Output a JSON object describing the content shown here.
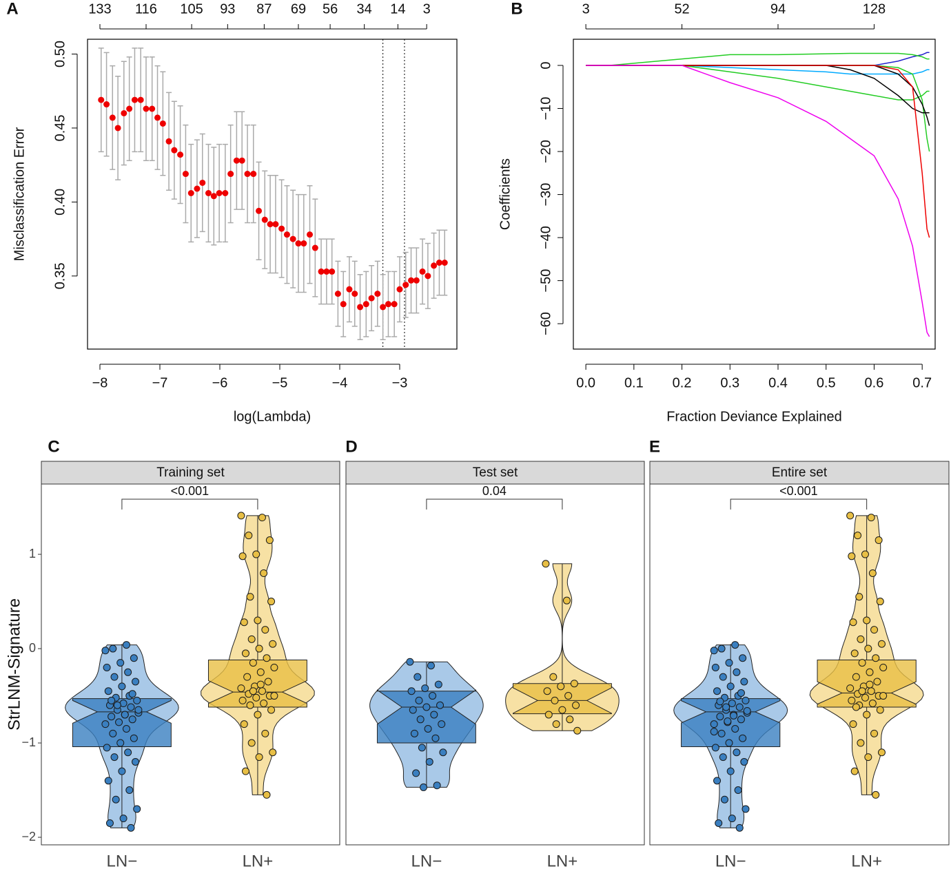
{
  "chart_data": [
    {
      "type": "scatter",
      "panel": "A",
      "xlabel": "log(Lambda)",
      "ylabel": "Misclassification Error",
      "x": [
        -7.98,
        -7.89,
        -7.79,
        -7.7,
        -7.6,
        -7.51,
        -7.42,
        -7.32,
        -7.23,
        -7.13,
        -7.04,
        -6.95,
        -6.85,
        -6.76,
        -6.66,
        -6.57,
        -6.48,
        -6.38,
        -6.29,
        -6.19,
        -6.1,
        -6.01,
        -5.91,
        -5.82,
        -5.72,
        -5.63,
        -5.54,
        -5.44,
        -5.35,
        -5.25,
        -5.16,
        -5.07,
        -4.97,
        -4.88,
        -4.78,
        -4.69,
        -4.6,
        -4.5,
        -4.41,
        -4.31,
        -4.22,
        -4.13,
        -4.03,
        -3.94,
        -3.84,
        -3.75,
        -3.66,
        -3.56,
        -3.47,
        -3.37,
        -3.28,
        -3.19,
        -3.09,
        -3.0,
        -2.9,
        -2.81,
        -2.72,
        -2.62,
        -2.53,
        -2.43,
        -2.34,
        -2.25
      ],
      "values": [
        0.469,
        0.466,
        0.457,
        0.45,
        0.46,
        0.463,
        0.469,
        0.469,
        0.463,
        0.463,
        0.457,
        0.453,
        0.441,
        0.435,
        0.432,
        0.419,
        0.406,
        0.409,
        0.413,
        0.406,
        0.404,
        0.406,
        0.406,
        0.419,
        0.428,
        0.428,
        0.419,
        0.419,
        0.394,
        0.388,
        0.385,
        0.385,
        0.382,
        0.378,
        0.375,
        0.372,
        0.372,
        0.378,
        0.369,
        0.353,
        0.353,
        0.353,
        0.338,
        0.331,
        0.341,
        0.338,
        0.329,
        0.331,
        0.335,
        0.338,
        0.329,
        0.331,
        0.331,
        0.341,
        0.344,
        0.347,
        0.347,
        0.353,
        0.35,
        0.357,
        0.359,
        0.359
      ],
      "errors": [
        0.035,
        0.035,
        0.035,
        0.035,
        0.035,
        0.035,
        0.035,
        0.035,
        0.035,
        0.035,
        0.035,
        0.035,
        0.033,
        0.033,
        0.033,
        0.033,
        0.033,
        0.033,
        0.033,
        0.033,
        0.033,
        0.033,
        0.033,
        0.033,
        0.033,
        0.033,
        0.033,
        0.033,
        0.033,
        0.033,
        0.033,
        0.033,
        0.033,
        0.033,
        0.033,
        0.033,
        0.033,
        0.033,
        0.033,
        0.022,
        0.022,
        0.022,
        0.022,
        0.022,
        0.022,
        0.022,
        0.022,
        0.022,
        0.022,
        0.022,
        0.022,
        0.022,
        0.022,
        0.022,
        0.022,
        0.022,
        0.022,
        0.022,
        0.022,
        0.022,
        0.022,
        0.022
      ],
      "color": "#ee0000",
      "error_color": "#aaaaaa",
      "xlim": [
        -8.207,
        -2.046
      ],
      "ylim": [
        0.3006,
        0.51
      ],
      "xticks": [
        {
          "value": -8,
          "label": "−8"
        },
        {
          "value": -7,
          "label": "−7"
        },
        {
          "value": -6,
          "label": "−6"
        },
        {
          "value": -5,
          "label": "−5"
        },
        {
          "value": -4,
          "label": "−4"
        },
        {
          "value": -3,
          "label": "−3"
        }
      ],
      "yticks": [
        0.35,
        {
          "value": 0.4,
          "label": "0.40"
        },
        0.45,
        {
          "value": 0.5,
          "label": "0.50"
        }
      ],
      "top_ticks": [
        {
          "value": -8,
          "label": "133"
        },
        {
          "value": -7.23,
          "label": "116"
        },
        {
          "value": -6.47,
          "label": "105"
        },
        {
          "value": -5.87,
          "label": "93"
        },
        {
          "value": -5.26,
          "label": "87"
        },
        {
          "value": -4.69,
          "label": "69"
        },
        {
          "value": -4.16,
          "label": "56"
        },
        {
          "value": -3.59,
          "label": "34"
        },
        {
          "value": -3.03,
          "label": "14"
        },
        {
          "value": -2.55,
          "label": "3"
        }
      ],
      "vlines": [
        -3.28,
        -2.92
      ]
    },
    {
      "type": "line",
      "panel": "B",
      "xlabel": "Fraction Deviance Explained",
      "ylabel": "Coefficients",
      "x": [
        0,
        0.05,
        0.1,
        0.2,
        0.3,
        0.4,
        0.5,
        0.55,
        0.6,
        0.65,
        0.68,
        0.7,
        0.71,
        0.715
      ],
      "series": [
        {
          "color": "#00aaff",
          "values": [
            0,
            0,
            0,
            0,
            -0.5,
            -1,
            -1.5,
            -2,
            -2,
            -2,
            -2,
            -1.5,
            -1,
            -1
          ]
        },
        {
          "color": "#2222cc",
          "values": [
            0,
            0,
            0,
            0,
            0,
            0,
            0,
            0,
            0,
            1,
            2,
            2.5,
            3,
            3
          ]
        },
        {
          "color": "#22cc22",
          "values": [
            0,
            0,
            0.5,
            1.5,
            2.5,
            2.5,
            2.7,
            2.8,
            2.8,
            2.8,
            2.5,
            2,
            1.5,
            1.5
          ]
        },
        {
          "color": "#22cc22",
          "values": [
            0,
            0,
            0,
            0,
            -1.5,
            -3,
            -5,
            -6,
            -7,
            -8,
            -8,
            -7,
            -6,
            -6
          ]
        },
        {
          "color": "#22cc22",
          "values": [
            0,
            0,
            0,
            0,
            0,
            0,
            0,
            0,
            0,
            -0.5,
            -2,
            -8,
            -17,
            -20
          ]
        },
        {
          "color": "#000000",
          "values": [
            0,
            0,
            0,
            0,
            0,
            0,
            0,
            -1,
            -3,
            -7,
            -10,
            -11,
            -11,
            -11
          ]
        },
        {
          "color": "#000000",
          "values": [
            0,
            0,
            0,
            0,
            0,
            0,
            0,
            0,
            0,
            -2,
            -5,
            -9,
            -12,
            -14
          ]
        },
        {
          "color": "#ee0000",
          "values": [
            0,
            0,
            0,
            0,
            0,
            0,
            0,
            0,
            0,
            -1,
            -5,
            -25,
            -38,
            -40
          ]
        },
        {
          "color": "#ee00ee",
          "values": [
            0,
            0,
            0,
            0,
            -4,
            -7.5,
            -13,
            -17,
            -21,
            -31,
            -42,
            -55,
            -62,
            -63
          ]
        }
      ],
      "xlim": [
        -0.026,
        0.727
      ],
      "ylim": [
        -65.9,
        6.08
      ],
      "xticks": [
        {
          "value": 0,
          "label": "0.0"
        },
        0.1,
        0.2,
        0.3,
        0.4,
        0.5,
        0.6,
        0.7
      ],
      "yticks": [
        {
          "value": -60,
          "label": "−60"
        },
        {
          "value": -50,
          "label": "−50"
        },
        {
          "value": -40,
          "label": "−40"
        },
        {
          "value": -30,
          "label": "−30"
        },
        {
          "value": -20,
          "label": "−20"
        },
        {
          "value": -10,
          "label": "−10"
        },
        0
      ],
      "top_ticks": [
        {
          "value": 0,
          "label": "3"
        },
        {
          "value": 0.2,
          "label": "52"
        },
        {
          "value": 0.4,
          "label": "94"
        },
        {
          "value": 0.6,
          "label": "128"
        }
      ]
    },
    {
      "type": "violin",
      "panel": "C",
      "title": "Training set",
      "annotation": "<0.001",
      "ylabel": "StrLNM-Signature",
      "categories": [
        "LN−",
        "LN+"
      ],
      "ylim": [
        -2.08,
        1.745
      ],
      "yticks": [
        {
          "value": -2,
          "label": "−2"
        },
        {
          "value": -1,
          "label": "−1"
        },
        0,
        1
      ],
      "groups": [
        {
          "color": "#3a7fc0",
          "light": "#a9c9e8",
          "box": [
            -1.04,
            -0.67,
            -0.53
          ],
          "whisker": [
            -1.9,
            0.05
          ],
          "points": [
            -0.02,
            0.04,
            0.0,
            -0.1,
            -0.15,
            -0.2,
            -0.25,
            -0.3,
            -0.35,
            -0.4,
            -0.45,
            -0.5,
            -0.52,
            -0.55,
            -0.58,
            -0.6,
            -0.62,
            -0.65,
            -0.68,
            -0.7,
            -0.72,
            -0.75,
            -0.78,
            -0.8,
            -0.85,
            -0.9,
            -0.95,
            -1.0,
            -1.05,
            -1.1,
            -1.15,
            -1.2,
            -1.3,
            -1.4,
            -1.5,
            -1.6,
            -1.7,
            -1.8,
            -1.85,
            -1.9,
            -0.6,
            -0.65,
            -0.7,
            -0.55,
            -0.48
          ]
        },
        {
          "color": "#e8bf45",
          "light": "#f7e1a4",
          "box": [
            -0.62,
            -0.46,
            -0.12
          ],
          "whisker": [
            -1.55,
            1.41
          ],
          "points": [
            1.41,
            1.39,
            1.2,
            1.15,
            1.0,
            0.98,
            0.8,
            0.55,
            0.5,
            0.3,
            0.28,
            0.2,
            0.1,
            0.05,
            0.0,
            -0.05,
            -0.1,
            -0.15,
            -0.2,
            -0.25,
            -0.3,
            -0.35,
            -0.4,
            -0.42,
            -0.45,
            -0.48,
            -0.5,
            -0.52,
            -0.55,
            -0.58,
            -0.6,
            -0.65,
            -0.7,
            -0.8,
            -0.9,
            -1.0,
            -1.1,
            -1.15,
            -1.3,
            -1.55,
            -0.45,
            -0.5,
            -0.38
          ]
        }
      ]
    },
    {
      "type": "violin",
      "panel": "D",
      "title": "Test set",
      "annotation": "0.04",
      "categories": [
        "LN−",
        "LN+"
      ],
      "ylim": [
        -2.08,
        1.745
      ],
      "groups": [
        {
          "color": "#3a7fc0",
          "light": "#a9c9e8",
          "box": [
            -1.0,
            -0.62,
            -0.45
          ],
          "whisker": [
            -1.47,
            -0.14
          ],
          "points": [
            -0.14,
            -0.18,
            -0.3,
            -0.38,
            -0.42,
            -0.45,
            -0.5,
            -0.55,
            -0.6,
            -0.62,
            -0.65,
            -0.7,
            -0.75,
            -0.8,
            -0.85,
            -0.9,
            -0.95,
            -1.05,
            -1.1,
            -1.2,
            -1.32,
            -1.45,
            -1.47
          ]
        },
        {
          "color": "#e8bf45",
          "light": "#f7e1a4",
          "box": [
            -0.69,
            -0.55,
            -0.37
          ],
          "whisker": [
            -0.87,
            0.9
          ],
          "points": [
            0.9,
            0.51,
            -0.3,
            -0.37,
            -0.4,
            -0.45,
            -0.5,
            -0.55,
            -0.6,
            -0.65,
            -0.7,
            -0.75,
            -0.8,
            -0.87
          ]
        }
      ]
    },
    {
      "type": "violin",
      "panel": "E",
      "title": "Entire set",
      "annotation": "<0.001",
      "categories": [
        "LN−",
        "LN+"
      ],
      "ylim": [
        -2.08,
        1.745
      ],
      "groups": [
        {
          "color": "#3a7fc0",
          "light": "#a9c9e8",
          "box": [
            -1.04,
            -0.67,
            -0.53
          ],
          "whisker": [
            -1.9,
            0.05
          ],
          "points": [
            -0.02,
            0.04,
            0.0,
            -0.1,
            -0.15,
            -0.2,
            -0.25,
            -0.3,
            -0.35,
            -0.4,
            -0.45,
            -0.5,
            -0.52,
            -0.55,
            -0.58,
            -0.6,
            -0.62,
            -0.65,
            -0.68,
            -0.7,
            -0.72,
            -0.75,
            -0.78,
            -0.8,
            -0.85,
            -0.9,
            -0.95,
            -1.0,
            -1.05,
            -1.1,
            -1.15,
            -1.2,
            -1.3,
            -1.4,
            -1.5,
            -1.6,
            -1.7,
            -1.8,
            -1.85,
            -1.9,
            -0.62,
            -0.66,
            -0.71,
            -0.56,
            -0.47,
            -0.77,
            -0.88
          ]
        },
        {
          "color": "#e8bf45",
          "light": "#f7e1a4",
          "box": [
            -0.62,
            -0.47,
            -0.12
          ],
          "whisker": [
            -1.55,
            1.41
          ],
          "points": [
            1.41,
            1.39,
            1.2,
            1.15,
            1.0,
            0.98,
            0.8,
            0.55,
            0.5,
            0.3,
            0.28,
            0.2,
            0.1,
            0.05,
            0.0,
            -0.05,
            -0.1,
            -0.15,
            -0.2,
            -0.25,
            -0.3,
            -0.35,
            -0.4,
            -0.42,
            -0.45,
            -0.48,
            -0.5,
            -0.52,
            -0.55,
            -0.58,
            -0.6,
            -0.65,
            -0.7,
            -0.8,
            -0.9,
            -1.0,
            -1.1,
            -1.15,
            -1.3,
            -1.55,
            -0.45,
            -0.5,
            -0.38,
            -0.62
          ]
        }
      ]
    }
  ]
}
